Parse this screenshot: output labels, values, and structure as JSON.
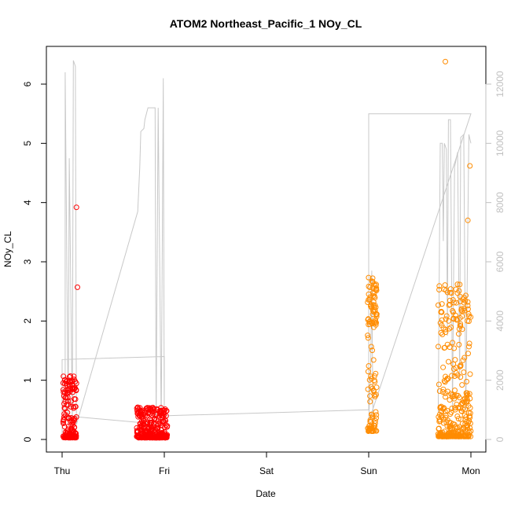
{
  "chart_data": {
    "type": "scatter",
    "title": "ATOM2 Northeast_Pacific_1 NOy_CL",
    "xlabel": "Date",
    "ylabel": "NOy_CL",
    "x_ticks": [
      "Thu",
      "Fri",
      "Sat",
      "Sun",
      "Mon"
    ],
    "x_range_days": [
      0,
      4
    ],
    "y_left": {
      "range": [
        0,
        6.5
      ],
      "ticks": [
        0,
        1,
        2,
        3,
        4,
        5,
        6
      ]
    },
    "y_right": {
      "range": [
        -200,
        13200
      ],
      "ticks": [
        0,
        2000,
        4000,
        6000,
        8000,
        10000,
        12000
      ],
      "color": "#c0c0c0"
    },
    "grid": false,
    "legend": "none",
    "colors": {
      "series_red": "#ff0000",
      "series_orange": "#ff8c00",
      "altitude_line": "#c8c8c8"
    },
    "series": [
      {
        "color": "#ff0000",
        "segments": [
          {
            "x_start": 0.01,
            "x_end": 0.14,
            "y_min": 0.03,
            "y_max": 1.08,
            "extra": [
              [
                0.14,
                3.92
              ],
              [
                0.15,
                2.57
              ]
            ]
          },
          {
            "x_start": 0.73,
            "x_end": 1.03,
            "y_min": 0.03,
            "y_max": 0.55
          }
        ]
      },
      {
        "color": "#ff8c00",
        "segments": [
          {
            "x_start": 2.99,
            "x_end": 3.08,
            "y_min": 0.14,
            "y_max": 2.75
          },
          {
            "x_start": 3.68,
            "x_end": 4.0,
            "y_min": 0.05,
            "y_max": 2.65,
            "extra": [
              [
                3.75,
                6.38
              ],
              [
                3.99,
                4.62
              ],
              [
                3.97,
                3.7
              ]
            ]
          }
        ]
      }
    ],
    "altitude_line": {
      "axis": "right",
      "points": [
        [
          0.0,
          100
        ],
        [
          0.0,
          2700
        ],
        [
          1.0,
          2800
        ],
        [
          1.0,
          500
        ],
        [
          0.03,
          800
        ],
        [
          0.03,
          12400
        ],
        [
          0.06,
          500
        ],
        [
          0.07,
          9500
        ],
        [
          0.1,
          500
        ],
        [
          0.11,
          12800
        ],
        [
          0.13,
          12600
        ],
        [
          0.14,
          500
        ],
        [
          0.74,
          7700
        ],
        [
          0.76,
          9200
        ],
        [
          0.77,
          10400
        ],
        [
          0.8,
          10500
        ],
        [
          0.81,
          10800
        ],
        [
          0.84,
          11200
        ],
        [
          0.91,
          11200
        ],
        [
          0.92,
          500
        ],
        [
          0.94,
          11200
        ],
        [
          0.97,
          500
        ],
        [
          0.99,
          12200
        ],
        [
          1.0,
          500
        ],
        [
          1.0,
          800
        ],
        [
          3.0,
          1000
        ],
        [
          3.0,
          11000
        ],
        [
          4.0,
          11000
        ],
        [
          3.0,
          600
        ],
        [
          3.02,
          2500
        ],
        [
          3.03,
          5700
        ],
        [
          3.04,
          1200
        ],
        [
          3.05,
          500
        ],
        [
          3.06,
          200
        ]
      ],
      "points_mon": [
        [
          3.68,
          900
        ],
        [
          3.7,
          10000
        ],
        [
          3.72,
          10000
        ],
        [
          3.73,
          6700
        ],
        [
          3.74,
          10000
        ],
        [
          3.76,
          9800
        ],
        [
          3.77,
          3500
        ],
        [
          3.78,
          10800
        ],
        [
          3.8,
          10800
        ],
        [
          3.82,
          1000
        ],
        [
          3.84,
          9200
        ],
        [
          3.87,
          9700
        ],
        [
          3.89,
          2000
        ],
        [
          3.9,
          10200
        ],
        [
          3.93,
          10300
        ],
        [
          3.95,
          1000
        ],
        [
          3.98,
          10300
        ],
        [
          4.0,
          10000
        ]
      ]
    }
  }
}
